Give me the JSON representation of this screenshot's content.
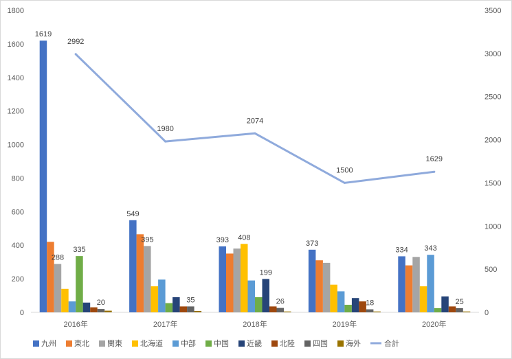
{
  "chart_data": {
    "type": "bar",
    "title": "",
    "xlabel": "",
    "ylabel": "",
    "categories": [
      "2016年",
      "2017年",
      "2018年",
      "2019年",
      "2020年"
    ],
    "ylim": [
      0,
      1800
    ],
    "y_ticks": [
      0,
      200,
      400,
      600,
      800,
      1000,
      1200,
      1400,
      1600,
      1800
    ],
    "y2lim": [
      0,
      3500
    ],
    "y2_ticks": [
      0,
      500,
      1000,
      1500,
      2000,
      2500,
      3000,
      3500
    ],
    "grid": false,
    "legend_position": "bottom",
    "series": [
      {
        "name": "九州",
        "type": "bar",
        "color": "#4472C4",
        "values": [
          1619,
          549,
          393,
          373,
          334
        ],
        "labels": [
          true,
          true,
          true,
          true,
          true
        ]
      },
      {
        "name": "東北",
        "type": "bar",
        "color": "#ED7D31",
        "values": [
          420,
          465,
          350,
          310,
          280
        ],
        "labels": [
          false,
          false,
          false,
          false,
          false
        ]
      },
      {
        "name": "関東",
        "type": "bar",
        "color": "#A5A5A5",
        "values": [
          288,
          395,
          380,
          295,
          330
        ],
        "labels": [
          true,
          true,
          false,
          false,
          false
        ]
      },
      {
        "name": "北海道",
        "type": "bar",
        "color": "#FFC000",
        "values": [
          140,
          155,
          408,
          165,
          155
        ],
        "labels": [
          false,
          false,
          true,
          false,
          false
        ]
      },
      {
        "name": "中部",
        "type": "bar",
        "color": "#5B9BD5",
        "values": [
          65,
          195,
          190,
          125,
          343
        ],
        "labels": [
          false,
          false,
          false,
          false,
          true
        ]
      },
      {
        "name": "中国",
        "type": "bar",
        "color": "#70AD47",
        "values": [
          335,
          55,
          90,
          45,
          25
        ],
        "labels": [
          true,
          false,
          false,
          false,
          false
        ]
      },
      {
        "name": "近畿",
        "type": "bar",
        "color": "#264478",
        "values": [
          58,
          90,
          199,
          85,
          95
        ],
        "labels": [
          false,
          false,
          true,
          false,
          false
        ]
      },
      {
        "name": "北陸",
        "type": "bar",
        "color": "#9E480E",
        "values": [
          30,
          35,
          35,
          65,
          35
        ],
        "labels": [
          false,
          false,
          false,
          false,
          false
        ]
      },
      {
        "name": "四国",
        "type": "bar",
        "color": "#636363",
        "values": [
          20,
          35,
          26,
          18,
          25
        ],
        "labels": [
          true,
          true,
          true,
          true,
          true
        ]
      },
      {
        "name": "海外",
        "type": "bar",
        "color": "#997300",
        "values": [
          10,
          8,
          5,
          5,
          5
        ],
        "labels": [
          false,
          false,
          false,
          false,
          false
        ]
      },
      {
        "name": "合計",
        "type": "line",
        "axis": "secondary",
        "color": "#8FAADC",
        "values": [
          2992,
          1980,
          2074,
          1500,
          1629
        ],
        "labels": [
          true,
          true,
          true,
          true,
          true
        ]
      }
    ]
  }
}
